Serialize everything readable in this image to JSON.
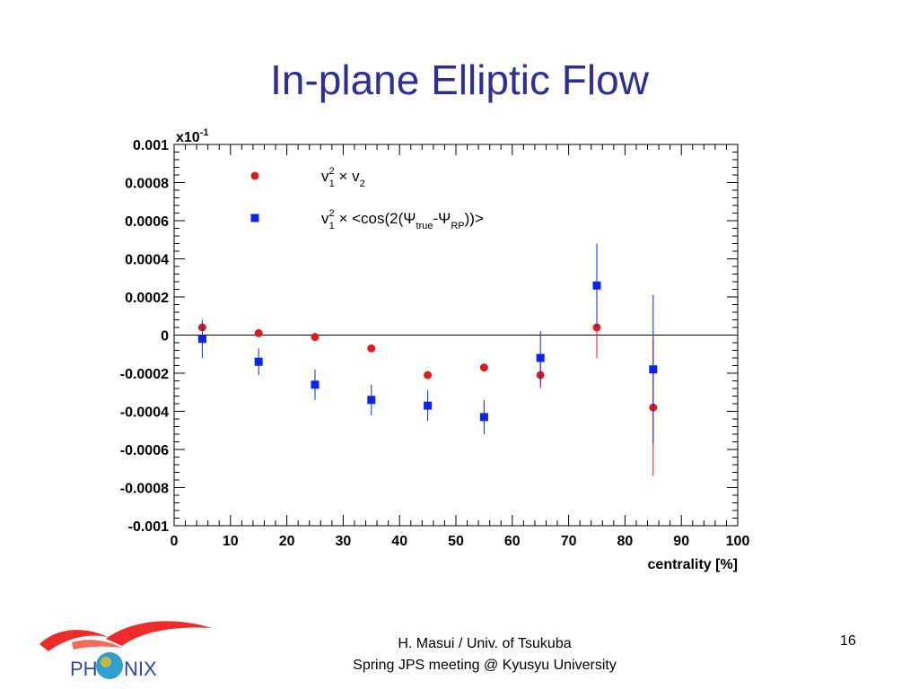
{
  "slide": {
    "title": "In-plane Elliptic Flow",
    "footer_line1": "H. Masui / Univ. of Tsukuba",
    "footer_line2": "Spring JPS meeting @ Kyusyu University",
    "page_number": "16",
    "logo_text": "PHENIX"
  },
  "colors": {
    "title": "#2e2e99",
    "series_red": "#e31a1c",
    "series_blue": "#0b24f0",
    "logo_red": "#ee2a2a",
    "logo_text": "#2e4a9e"
  },
  "chart_data": {
    "type": "scatter",
    "xlabel": "centrality [%]",
    "ylabel": "",
    "y_multiplier": "x10",
    "y_multiplier_exp": "-1",
    "xlim": [
      0,
      100
    ],
    "ylim": [
      -0.001,
      0.001
    ],
    "x_ticks": [
      0,
      10,
      20,
      30,
      40,
      50,
      60,
      70,
      80,
      90,
      100
    ],
    "y_ticks": [
      {
        "value": 0.001,
        "label": "0.001"
      },
      {
        "value": 0.0008,
        "label": "0.0008"
      },
      {
        "value": 0.0006,
        "label": "0.0006"
      },
      {
        "value": 0.0004,
        "label": "0.0004"
      },
      {
        "value": 0.0002,
        "label": "0.0002"
      },
      {
        "value": 0,
        "label": "0"
      },
      {
        "value": -0.0002,
        "label": "-0.0002"
      },
      {
        "value": -0.0004,
        "label": "-0.0004"
      },
      {
        "value": -0.0006,
        "label": "-0.0006"
      },
      {
        "value": -0.0008,
        "label": "-0.0008"
      },
      {
        "value": -0.001,
        "label": "-0.001"
      }
    ],
    "legend_position": "top-left",
    "series": [
      {
        "key": "red",
        "marker": "circle",
        "legend": {
          "v": "v",
          "sup": "2",
          "sub": "1",
          "times": " × v",
          "sub2": "2"
        },
        "points": [
          {
            "x": 5,
            "y": 4e-05,
            "err": 5e-06
          },
          {
            "x": 15,
            "y": 1e-05,
            "err": 5e-06
          },
          {
            "x": 25,
            "y": -1e-05,
            "err": 5e-06
          },
          {
            "x": 35,
            "y": -7e-05,
            "err": 8e-06
          },
          {
            "x": 45,
            "y": -0.00021,
            "err": 1e-05
          },
          {
            "x": 55,
            "y": -0.00017,
            "err": 2e-05
          },
          {
            "x": 65,
            "y": -0.00021,
            "err": 7e-05
          },
          {
            "x": 75,
            "y": 4e-05,
            "err": 0.00016
          },
          {
            "x": 85,
            "y": -0.00038,
            "err": 0.00036
          }
        ]
      },
      {
        "key": "blue",
        "marker": "square",
        "legend": {
          "v": "v",
          "sup": "2",
          "sub": "1",
          "times": " × <cos(2(Ψ",
          "sub2": "true",
          "mid": "-Ψ",
          "sub3": "RP",
          "end": "))>"
        },
        "points": [
          {
            "x": 5,
            "y": -2e-05,
            "err": 0.0001
          },
          {
            "x": 15,
            "y": -0.00014,
            "err": 7e-05
          },
          {
            "x": 25,
            "y": -0.00026,
            "err": 8e-05
          },
          {
            "x": 35,
            "y": -0.00034,
            "err": 8e-05
          },
          {
            "x": 45,
            "y": -0.00037,
            "err": 8e-05
          },
          {
            "x": 55,
            "y": -0.00043,
            "err": 9e-05
          },
          {
            "x": 65,
            "y": -0.00012,
            "err": 0.00014
          },
          {
            "x": 75,
            "y": 0.00026,
            "err": 0.00022
          },
          {
            "x": 85,
            "y": -0.00018,
            "err": 0.00039
          }
        ]
      }
    ]
  }
}
